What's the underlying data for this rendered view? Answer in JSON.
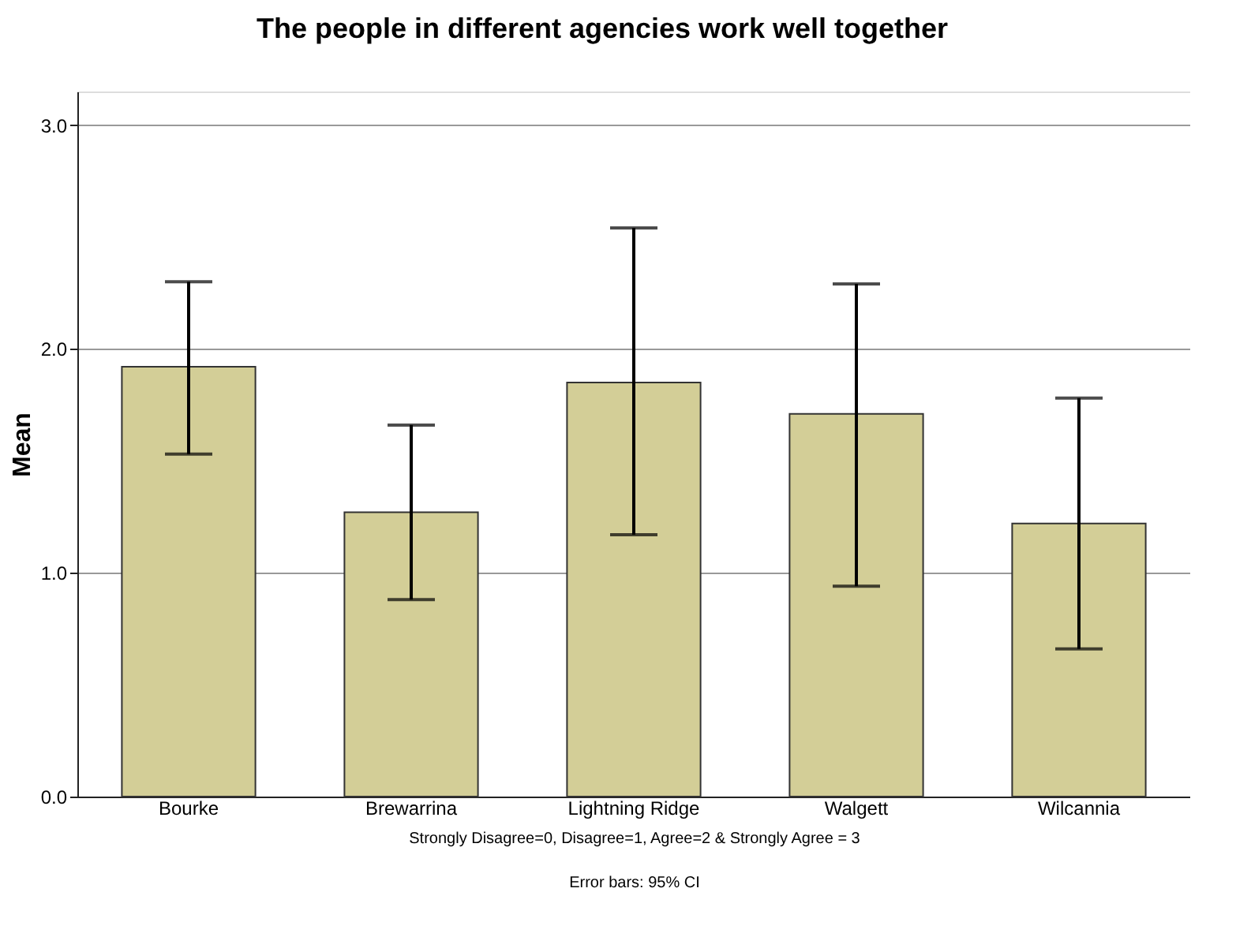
{
  "chart_data": {
    "type": "bar",
    "title": "The people in different agencies work well together",
    "ylabel": "Mean",
    "categories": [
      "Bourke",
      "Brewarrina",
      "Lightning Ridge",
      "Walgett",
      "Wilcannia"
    ],
    "values": [
      1.92,
      1.27,
      1.85,
      1.71,
      1.22
    ],
    "errors": [
      [
        1.53,
        2.3
      ],
      [
        0.88,
        1.66
      ],
      [
        1.17,
        2.54
      ],
      [
        0.94,
        2.29
      ],
      [
        0.66,
        1.78
      ]
    ],
    "color": "#d3ce97",
    "ylim": [
      0,
      3.15
    ],
    "yticks": [
      {
        "value": 0,
        "label": "0.0"
      },
      {
        "value": 1,
        "label": "1.0"
      },
      {
        "value": 2,
        "label": "2.0"
      },
      {
        "value": 3,
        "label": "3.0"
      }
    ],
    "grid": "y",
    "annotations": [
      "Strongly Disagree=0, Disagree=1, Agree=2 & Strongly Agree = 3",
      "Error bars: 95% CI"
    ]
  }
}
